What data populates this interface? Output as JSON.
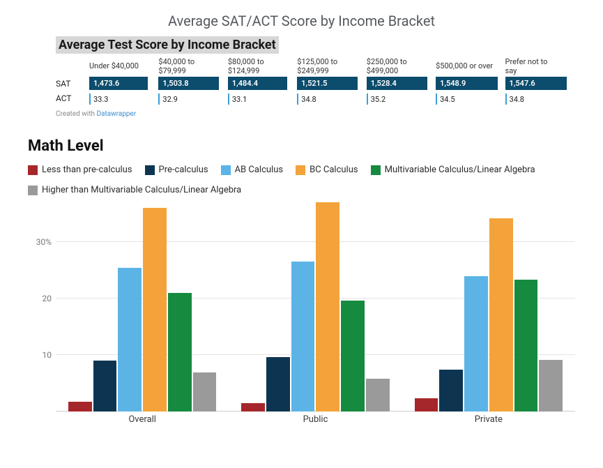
{
  "top_chart": {
    "title": "Average SAT/ACT Score by Income Bracket",
    "subtitle": "Average Test Score by Income Bracket",
    "row_labels": {
      "sat": "SAT",
      "act": "ACT"
    },
    "sat_bar_color": "#0c4c6c",
    "act_tick_color": "#3aa0d8",
    "header_text_color": "#333333",
    "header_fontsize": 11,
    "value_fontsize": 11,
    "sat_max_width_pct": 97,
    "columns": [
      {
        "header": "Under $40,000",
        "sat": 1473.6,
        "sat_label": "1,473.6",
        "act": 33.3,
        "act_label": "33.3"
      },
      {
        "header": "$40,000 to $79,999",
        "sat": 1503.8,
        "sat_label": "1,503.8",
        "act": 32.9,
        "act_label": "32.9"
      },
      {
        "header": "$80,000 to $124,999",
        "sat": 1484.4,
        "sat_label": "1,484.4",
        "act": 33.1,
        "act_label": "33.1"
      },
      {
        "header": "$125,000 to $249,999",
        "sat": 1521.5,
        "sat_label": "1,521.5",
        "act": 34.8,
        "act_label": "34.8"
      },
      {
        "header": "$250,000 to $499,000",
        "sat": 1528.4,
        "sat_label": "1,528.4",
        "act": 35.2,
        "act_label": "35.2"
      },
      {
        "header": "$500,000 or over",
        "sat": 1548.9,
        "sat_label": "1,548.9",
        "act": 34.5,
        "act_label": "34.5"
      },
      {
        "header": "Prefer not to say",
        "sat": 1547.6,
        "sat_label": "1,547.6",
        "act": 34.8,
        "act_label": "34.8"
      }
    ],
    "credit_prefix": "Created with ",
    "credit_link_text": "Datawrapper"
  },
  "math_level": {
    "title": "Math Level",
    "title_fontsize": 22,
    "ylim": [
      0,
      37
    ],
    "yticks": [
      {
        "value": 10,
        "label": "10"
      },
      {
        "value": 20,
        "label": "20"
      },
      {
        "value": 30,
        "label": "30%"
      }
    ],
    "grid_color": "#e4e4e4",
    "baseline_color": "#cfcfcf",
    "legend_fontsize": 13,
    "series": [
      {
        "key": "lt_precalc",
        "label": "Less than pre-calculus",
        "color": "#a6272b"
      },
      {
        "key": "precalc",
        "label": "Pre-calculus",
        "color": "#0d3552"
      },
      {
        "key": "ab",
        "label": "AB Calculus",
        "color": "#5cb4e6"
      },
      {
        "key": "bc",
        "label": "BC Calculus",
        "color": "#f3a33a"
      },
      {
        "key": "mv",
        "label": "Multivariable Calculus/Linear Algebra",
        "color": "#168a3f"
      },
      {
        "key": "higher",
        "label": "Higher than Multivariable Calculus/Linear Algebra",
        "color": "#9a9a9a"
      }
    ],
    "groups": [
      {
        "label": "Overall",
        "values": {
          "lt_precalc": 1.8,
          "precalc": 9.0,
          "ab": 25.5,
          "bc": 36.0,
          "mv": 21.0,
          "higher": 7.0
        }
      },
      {
        "label": "Public",
        "values": {
          "lt_precalc": 1.5,
          "precalc": 9.6,
          "ab": 26.5,
          "bc": 37.0,
          "mv": 19.6,
          "higher": 5.8
        }
      },
      {
        "label": "Private",
        "values": {
          "lt_precalc": 2.4,
          "precalc": 7.4,
          "ab": 24.0,
          "bc": 34.2,
          "mv": 23.4,
          "higher": 9.2
        }
      }
    ]
  }
}
